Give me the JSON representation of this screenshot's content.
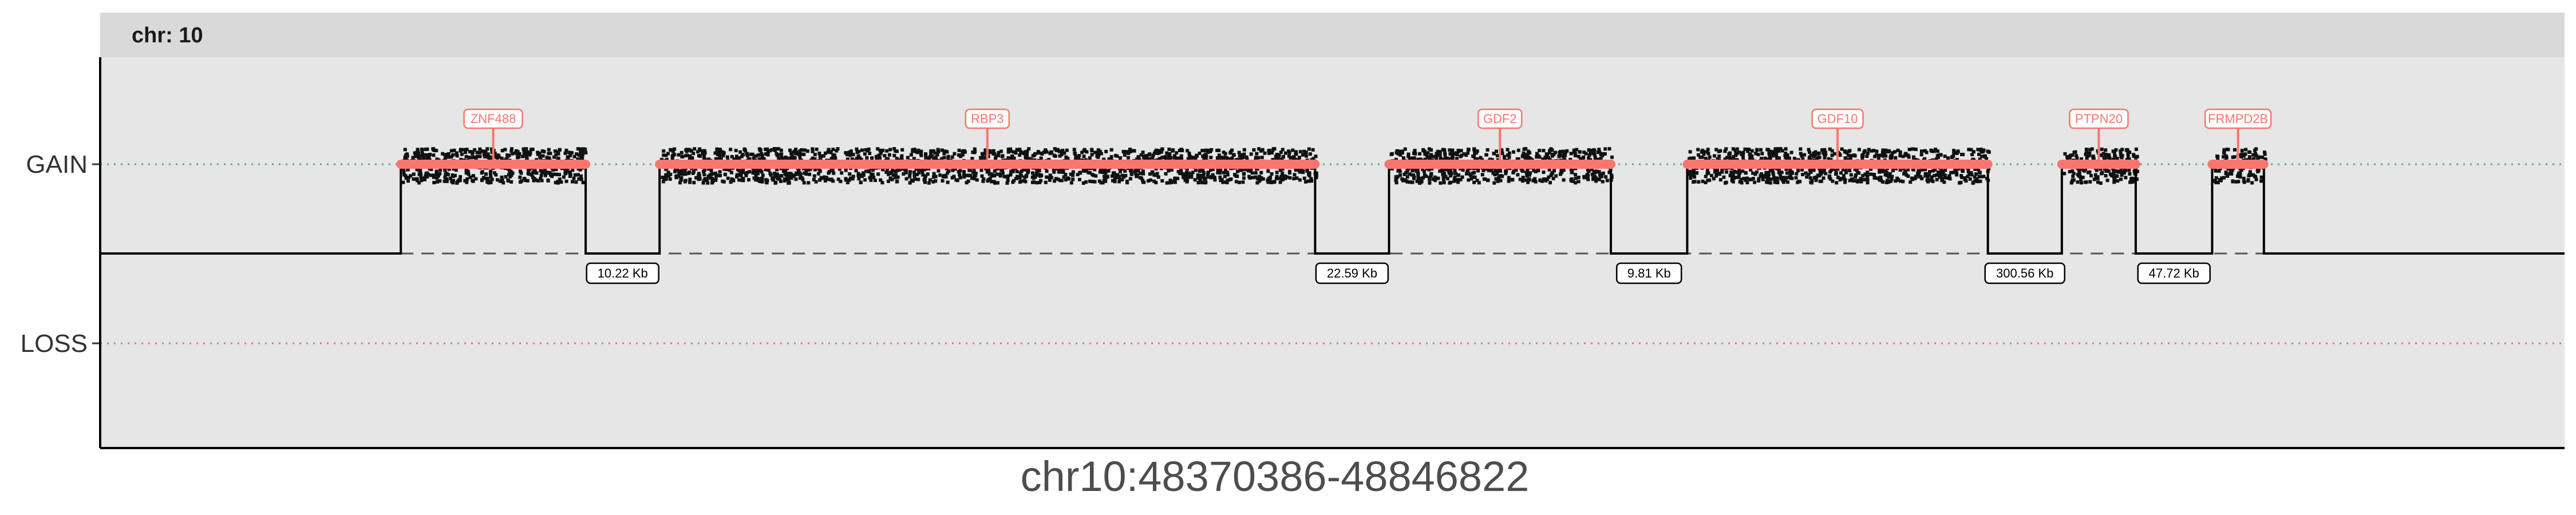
{
  "chart_data": {
    "type": "scatter",
    "facet_label": "chr: 10",
    "xlabel": "chr10:48370386-48846822",
    "ylabel": "",
    "y_categories": [
      "GAIN",
      "LOSS"
    ],
    "grid": false,
    "legend": "none",
    "colors": {
      "panel": "#e6e6e6",
      "strip": "#d9d9d9",
      "gain_line": "#4daf7c",
      "loss_line": "#e0708a",
      "gene": "#f8766d",
      "points": "#111111",
      "step": "#000000"
    },
    "series": [
      {
        "name": "ZNF488",
        "x_start": 0.122,
        "x_end": 0.197,
        "state": "GAIN"
      },
      {
        "name": "RBP3",
        "x_start": 0.227,
        "x_end": 0.493,
        "state": "GAIN"
      },
      {
        "name": "GDF2",
        "x_start": 0.523,
        "x_end": 0.613,
        "state": "GAIN"
      },
      {
        "name": "GDF10",
        "x_start": 0.644,
        "x_end": 0.766,
        "state": "GAIN"
      },
      {
        "name": "PTPN20",
        "x_start": 0.796,
        "x_end": 0.826,
        "state": "GAIN"
      },
      {
        "name": "FRMPD2B",
        "x_start": 0.857,
        "x_end": 0.878,
        "state": "GAIN"
      }
    ],
    "gaps": [
      {
        "label": "10.22 Kb"
      },
      {
        "label": "22.59 Kb"
      },
      {
        "label": "9.81 Kb"
      },
      {
        "label": "300.56 Kb"
      },
      {
        "label": "47.72 Kb"
      }
    ]
  }
}
